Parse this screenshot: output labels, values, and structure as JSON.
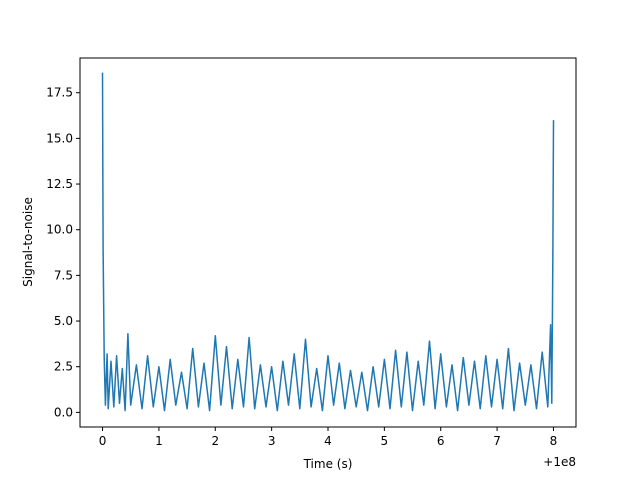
{
  "chart_data": {
    "type": "line",
    "title": "",
    "xlabel": "Time (s)",
    "ylabel": "Signal-to-noise",
    "x_offset_label": "+1e8",
    "xlim": [
      -0.4,
      8.4
    ],
    "ylim": [
      -0.8,
      19.4
    ],
    "x_ticks": [
      0,
      1,
      2,
      3,
      4,
      5,
      6,
      7,
      8
    ],
    "x_tick_labels": [
      "0",
      "1",
      "2",
      "3",
      "4",
      "5",
      "6",
      "7",
      "8"
    ],
    "y_ticks": [
      0.0,
      2.5,
      5.0,
      7.5,
      10.0,
      12.5,
      15.0,
      17.5
    ],
    "y_tick_labels": [
      "0.0",
      "2.5",
      "5.0",
      "7.5",
      "10.0",
      "12.5",
      "15.0",
      "17.5"
    ],
    "grid": false,
    "color": "#1f77b4",
    "series": [
      {
        "x": [
          0.0,
          0.01,
          0.03,
          0.05,
          0.08,
          0.1,
          0.15,
          0.2,
          0.25,
          0.3,
          0.35,
          0.4,
          0.45,
          0.5,
          0.6,
          0.7,
          0.8,
          0.9,
          1.0,
          1.1,
          1.2,
          1.3,
          1.4,
          1.5,
          1.6,
          1.7,
          1.8,
          1.9,
          2.0,
          2.1,
          2.2,
          2.3,
          2.4,
          2.5,
          2.6,
          2.7,
          2.8,
          2.9,
          3.0,
          3.1,
          3.2,
          3.3,
          3.4,
          3.5,
          3.6,
          3.7,
          3.8,
          3.9,
          4.0,
          4.1,
          4.2,
          4.3,
          4.4,
          4.5,
          4.6,
          4.7,
          4.8,
          4.9,
          5.0,
          5.1,
          5.2,
          5.3,
          5.4,
          5.5,
          5.6,
          5.7,
          5.8,
          5.9,
          6.0,
          6.1,
          6.2,
          6.3,
          6.4,
          6.5,
          6.6,
          6.7,
          6.8,
          6.9,
          7.0,
          7.1,
          7.2,
          7.3,
          7.4,
          7.5,
          7.6,
          7.7,
          7.8,
          7.9,
          7.95,
          7.97,
          7.99,
          8.0
        ],
        "y": [
          18.6,
          9.0,
          3.0,
          0.4,
          3.2,
          0.2,
          2.8,
          0.3,
          3.1,
          0.5,
          2.4,
          0.1,
          4.3,
          0.4,
          2.6,
          0.2,
          3.1,
          0.3,
          2.5,
          0.1,
          2.9,
          0.4,
          2.2,
          0.2,
          3.5,
          0.3,
          2.7,
          0.1,
          4.2,
          0.4,
          3.6,
          0.2,
          2.9,
          0.3,
          4.1,
          0.2,
          2.6,
          0.3,
          2.5,
          0.1,
          2.8,
          0.4,
          3.2,
          0.2,
          4.0,
          0.3,
          2.4,
          0.1,
          3.1,
          0.4,
          2.7,
          0.2,
          2.3,
          0.3,
          2.2,
          0.1,
          2.5,
          0.3,
          2.9,
          0.2,
          3.4,
          0.3,
          3.3,
          0.1,
          2.8,
          0.4,
          3.9,
          0.2,
          3.2,
          0.3,
          2.6,
          0.1,
          3.0,
          0.4,
          2.8,
          0.2,
          3.1,
          0.3,
          2.9,
          0.2,
          3.5,
          0.1,
          2.7,
          0.4,
          2.6,
          0.2,
          3.3,
          0.3,
          4.8,
          0.5,
          9.0,
          16.0
        ]
      }
    ]
  }
}
